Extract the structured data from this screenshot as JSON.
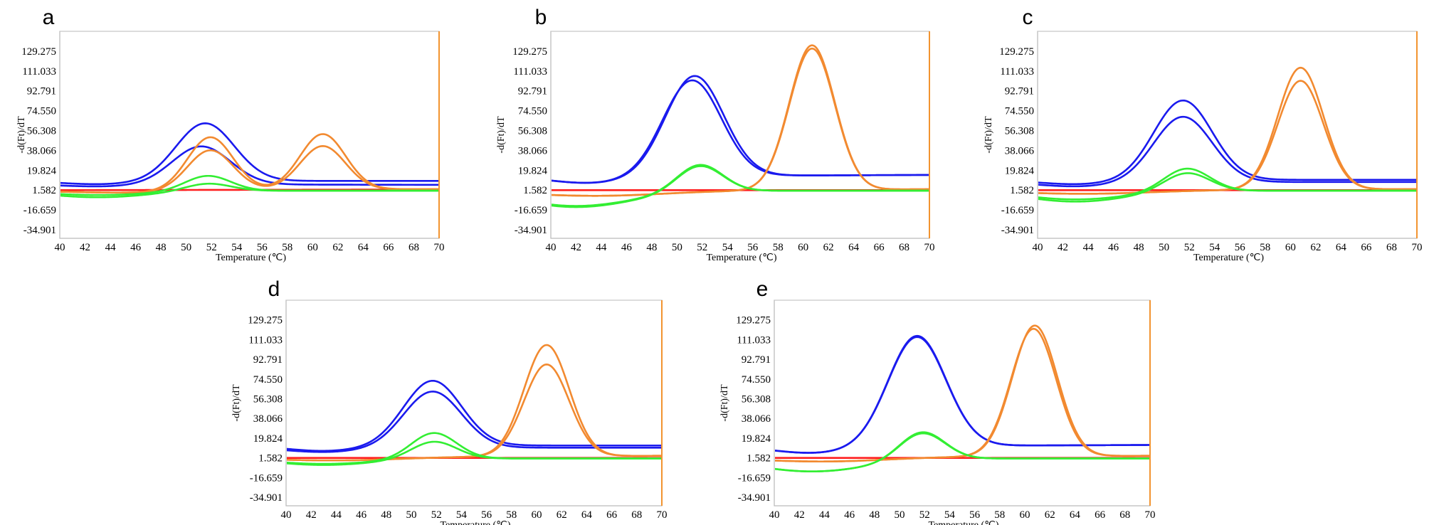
{
  "chart_data": [
    {
      "id": "a",
      "panel_label": "a",
      "type": "line",
      "xlabel": "Temperature (℃)",
      "ylabel": "-d(Ft)/dT",
      "xlim": [
        40,
        70
      ],
      "ylim": [
        -34.901,
        147.5
      ],
      "xticks": [
        40,
        42,
        44,
        46,
        48,
        50,
        52,
        54,
        56,
        58,
        60,
        62,
        64,
        66,
        68,
        70
      ],
      "yticks": [
        "129.275",
        "111.033",
        "92.791",
        "74.550",
        "56.308",
        "38.066",
        "19.824",
        "1.582",
        "-16.659",
        "-34.901"
      ],
      "series": [
        {
          "name": "red-baseline",
          "color": "#ff1f1f",
          "baseline": 1.5,
          "slope": 0.02,
          "peaks": []
        },
        {
          "name": "blue-1",
          "color": "#1a1aee",
          "baseline": 10,
          "slope": 0.0,
          "dip": [
            43,
            3,
            3
          ],
          "peaks": [
            [
              51.5,
              53,
              2.3
            ]
          ]
        },
        {
          "name": "blue-2",
          "color": "#1a1aee",
          "baseline": 7,
          "slope": -0.02,
          "dip": [
            43,
            2,
            3
          ],
          "peaks": [
            [
              51.2,
              35,
              2.3
            ]
          ]
        },
        {
          "name": "orange-1",
          "color": "#f28a30",
          "baseline": 1,
          "slope": 0.05,
          "dip": [
            45,
            2,
            4
          ],
          "peaks": [
            [
              51.9,
              49,
              1.8
            ],
            [
              60.8,
              51,
              1.8
            ]
          ]
        },
        {
          "name": "orange-2",
          "color": "#f28a30",
          "baseline": 1,
          "slope": 0.05,
          "dip": [
            45,
            2,
            4
          ],
          "peaks": [
            [
              51.9,
              37,
              1.8
            ],
            [
              60.8,
              40,
              1.8
            ]
          ]
        },
        {
          "name": "green-1",
          "color": "#33ee33",
          "baseline": 1,
          "slope": 0.0,
          "dip": [
            43,
            4,
            4
          ],
          "peaks": [
            [
              51.7,
              14,
              1.8
            ]
          ]
        },
        {
          "name": "green-2",
          "color": "#33ee33",
          "baseline": 1,
          "slope": 0.0,
          "dip": [
            43,
            6,
            4
          ],
          "peaks": [
            [
              51.7,
              7,
              1.8
            ]
          ]
        }
      ]
    },
    {
      "id": "b",
      "panel_label": "b",
      "type": "line",
      "xlabel": "Temperature (℃)",
      "ylabel": "-d(Ft)/dT",
      "xlim": [
        40,
        70
      ],
      "ylim": [
        -34.901,
        147.5
      ],
      "xticks": [
        40,
        42,
        44,
        46,
        48,
        50,
        52,
        54,
        56,
        58,
        60,
        62,
        64,
        66,
        68,
        70
      ],
      "yticks": [
        "129.275",
        "111.033",
        "92.791",
        "74.550",
        "56.308",
        "38.066",
        "19.824",
        "1.582",
        "-16.659",
        "-34.901"
      ],
      "series": [
        {
          "name": "red-baseline",
          "color": "#ff1f1f",
          "baseline": 1.5,
          "slope": 0.0,
          "peaks": []
        },
        {
          "name": "blue-1",
          "color": "#1a1aee",
          "baseline": 14,
          "slope": 0.05,
          "dip": [
            43,
            6,
            3
          ],
          "peaks": [
            [
              51.4,
              92,
              2.3
            ]
          ]
        },
        {
          "name": "blue-2",
          "color": "#1a1aee",
          "baseline": 14,
          "slope": 0.05,
          "dip": [
            43,
            6,
            3
          ],
          "peaks": [
            [
              51.2,
              88,
              2.3
            ]
          ]
        },
        {
          "name": "orange-1",
          "color": "#f28a30",
          "baseline": 0,
          "slope": 0.08,
          "dip": [
            44,
            4,
            5
          ],
          "peaks": [
            [
              60.7,
              133,
              1.8
            ]
          ]
        },
        {
          "name": "orange-2",
          "color": "#f28a30",
          "baseline": 0,
          "slope": 0.08,
          "dip": [
            44,
            4,
            5
          ],
          "peaks": [
            [
              60.7,
              130,
              1.8
            ]
          ]
        },
        {
          "name": "green-1",
          "color": "#33ee33",
          "baseline": 1,
          "slope": 0.0,
          "dip": [
            42,
            14,
            4.5
          ],
          "peaks": [
            [
              51.8,
              25,
              1.8
            ]
          ]
        },
        {
          "name": "green-2",
          "color": "#33ee33",
          "baseline": 1,
          "slope": 0.0,
          "dip": [
            42,
            15,
            4.5
          ],
          "peaks": [
            [
              51.8,
              24,
              1.8
            ]
          ]
        }
      ]
    },
    {
      "id": "c",
      "panel_label": "c",
      "type": "line",
      "xlabel": "Temperature (℃)",
      "ylabel": "-d(Ft)/dT",
      "xlim": [
        40,
        70
      ],
      "ylim": [
        -34.901,
        147.5
      ],
      "xticks": [
        40,
        42,
        44,
        46,
        48,
        50,
        52,
        54,
        56,
        58,
        60,
        62,
        64,
        66,
        68,
        70
      ],
      "yticks": [
        "129.275",
        "111.033",
        "92.791",
        "74.550",
        "56.308",
        "38.066",
        "19.824",
        "1.582",
        "-16.659",
        "-34.901"
      ],
      "series": [
        {
          "name": "red-baseline",
          "color": "#ff1f1f",
          "baseline": 1.5,
          "slope": 0.0,
          "peaks": []
        },
        {
          "name": "blue-1",
          "color": "#1a1aee",
          "baseline": 11,
          "slope": 0.0,
          "dip": [
            43,
            4,
            3
          ],
          "peaks": [
            [
              51.5,
              73,
              2.3
            ]
          ]
        },
        {
          "name": "blue-2",
          "color": "#1a1aee",
          "baseline": 9,
          "slope": 0.0,
          "dip": [
            43,
            4,
            3
          ],
          "peaks": [
            [
              51.5,
              60,
              2.3
            ]
          ]
        },
        {
          "name": "orange-1",
          "color": "#f28a30",
          "baseline": 1,
          "slope": 0.05,
          "dip": [
            44,
            3,
            5
          ],
          "peaks": [
            [
              60.8,
              112,
              1.8
            ]
          ]
        },
        {
          "name": "orange-2",
          "color": "#f28a30",
          "baseline": 1,
          "slope": 0.05,
          "dip": [
            44,
            3,
            5
          ],
          "peaks": [
            [
              60.8,
              100,
              1.8
            ]
          ]
        },
        {
          "name": "green-1",
          "color": "#33ee33",
          "baseline": 1,
          "slope": 0.0,
          "dip": [
            43,
            8,
            4
          ],
          "peaks": [
            [
              51.8,
              21,
              1.8
            ]
          ]
        },
        {
          "name": "green-2",
          "color": "#33ee33",
          "baseline": 1,
          "slope": 0.0,
          "dip": [
            43,
            10,
            4
          ],
          "peaks": [
            [
              51.8,
              17,
              1.8
            ]
          ]
        }
      ]
    },
    {
      "id": "d",
      "panel_label": "d",
      "type": "line",
      "xlabel": "Temperature (℃)",
      "ylabel": "-d(Ft)/dT",
      "xlim": [
        40,
        70
      ],
      "ylim": [
        -34.901,
        147.5
      ],
      "xticks": [
        40,
        42,
        44,
        46,
        48,
        50,
        52,
        54,
        56,
        58,
        60,
        62,
        64,
        66,
        68,
        70
      ],
      "yticks": [
        "129.275",
        "111.033",
        "92.791",
        "74.550",
        "56.308",
        "38.066",
        "19.824",
        "1.582",
        "-16.659",
        "-34.901"
      ],
      "series": [
        {
          "name": "red-baseline",
          "color": "#ff1f1f",
          "baseline": 1.5,
          "slope": 0.0,
          "peaks": []
        },
        {
          "name": "blue-1",
          "color": "#1a1aee",
          "baseline": 13,
          "slope": 0.0,
          "dip": [
            43,
            5,
            3
          ],
          "peaks": [
            [
              51.7,
              60,
              2.3
            ]
          ]
        },
        {
          "name": "blue-2",
          "color": "#1a1aee",
          "baseline": 11,
          "slope": 0.0,
          "dip": [
            43,
            4,
            3
          ],
          "peaks": [
            [
              51.7,
              52,
              2.3
            ]
          ]
        },
        {
          "name": "orange-1",
          "color": "#f28a30",
          "baseline": 2,
          "slope": 0.05,
          "dip": [
            44,
            3,
            5
          ],
          "peaks": [
            [
              60.8,
              103,
              1.8
            ]
          ]
        },
        {
          "name": "orange-2",
          "color": "#f28a30",
          "baseline": 2,
          "slope": 0.05,
          "dip": [
            44,
            3,
            5
          ],
          "peaks": [
            [
              60.8,
              85,
              1.8
            ]
          ]
        },
        {
          "name": "green-1",
          "color": "#33ee33",
          "baseline": 1,
          "slope": 0.0,
          "dip": [
            43,
            5,
            4
          ],
          "peaks": [
            [
              51.8,
              24,
              1.8
            ]
          ]
        },
        {
          "name": "green-2",
          "color": "#33ee33",
          "baseline": 1,
          "slope": 0.0,
          "dip": [
            43,
            6,
            4
          ],
          "peaks": [
            [
              51.8,
              16,
              1.8
            ]
          ]
        }
      ]
    },
    {
      "id": "e",
      "panel_label": "e",
      "type": "line",
      "xlabel": "Temperature (℃)",
      "ylabel": "-d(Ft)/dT",
      "xlim": [
        40,
        70
      ],
      "ylim": [
        -34.901,
        147.5
      ],
      "xticks": [
        40,
        42,
        44,
        46,
        48,
        50,
        52,
        54,
        56,
        58,
        60,
        62,
        64,
        66,
        68,
        70
      ],
      "yticks": [
        "129.275",
        "111.033",
        "92.791",
        "74.550",
        "56.308",
        "38.066",
        "19.824",
        "1.582",
        "-16.659",
        "-34.901"
      ],
      "series": [
        {
          "name": "red-baseline",
          "color": "#ff1f1f",
          "baseline": 1.5,
          "slope": 0.0,
          "peaks": []
        },
        {
          "name": "blue-1",
          "color": "#1a1aee",
          "baseline": 12,
          "slope": 0.05,
          "dip": [
            43,
            6,
            3
          ],
          "peaks": [
            [
              51.4,
              102,
              2.3
            ]
          ]
        },
        {
          "name": "blue-2",
          "color": "#1a1aee",
          "baseline": 12,
          "slope": 0.05,
          "dip": [
            43,
            6,
            3
          ],
          "peaks": [
            [
              51.4,
              101,
              2.3
            ]
          ]
        },
        {
          "name": "orange-1",
          "color": "#f28a30",
          "baseline": 2,
          "slope": 0.05,
          "dip": [
            44,
            4,
            5
          ],
          "peaks": [
            [
              60.8,
              121,
              1.8
            ]
          ]
        },
        {
          "name": "orange-2",
          "color": "#f28a30",
          "baseline": 2,
          "slope": 0.05,
          "dip": [
            44,
            4,
            5
          ],
          "peaks": [
            [
              60.7,
              118,
              1.8
            ]
          ]
        },
        {
          "name": "green-1",
          "color": "#33ee33",
          "baseline": 1,
          "slope": 0.0,
          "dip": [
            43,
            12,
            4.5
          ],
          "peaks": [
            [
              51.8,
              26,
              1.8
            ]
          ]
        },
        {
          "name": "green-2",
          "color": "#33ee33",
          "baseline": 1,
          "slope": 0.0,
          "dip": [
            43,
            12,
            4.5
          ],
          "peaks": [
            [
              51.8,
              25,
              1.8
            ]
          ]
        }
      ]
    }
  ]
}
